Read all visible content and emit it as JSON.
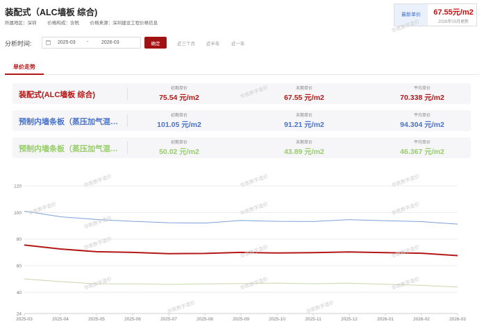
{
  "header": {
    "title": "装配式（ALC墙板 综合)",
    "region_label": "所属地区：",
    "region_value": "深圳",
    "composition_label": "价格构成：",
    "composition_value": "含税",
    "source_label": "价格来源：",
    "source_value": "深圳建设工程价格信息"
  },
  "latest_price": {
    "label": "最新单价",
    "value": "67.55元/m2",
    "updated": "2026年03月更新"
  },
  "filter": {
    "label": "分析时间:",
    "start": "2025-03",
    "separator": "-",
    "end": "2026-03",
    "confirm": "确定",
    "quick_options": [
      "近三个月",
      "近半年",
      "近一年"
    ]
  },
  "tabs": [
    "单价走势"
  ],
  "stats": {
    "col_labels": [
      "初期单价",
      "末期单价",
      "平均单价"
    ],
    "rows": [
      {
        "name": "装配式(ALC墙板 综合)",
        "color": "#b31616",
        "initial": "75.54 元/m2",
        "final": "67.55 元/m2",
        "average": "70.338 元/m2"
      },
      {
        "name": "预制内墙条板（蒸压加气混…",
        "color": "#4a72c9",
        "initial": "101.05 元/m2",
        "final": "91.21 元/m2",
        "average": "94.304 元/m2"
      },
      {
        "name": "预制内墙条板（蒸压加气混…",
        "color": "#97cc6a",
        "initial": "50.02 元/m2",
        "final": "43.89 元/m2",
        "average": "46.367 元/m2"
      }
    ]
  },
  "watermark": "华筑数字造价",
  "chart_data": {
    "type": "line",
    "categories": [
      "2025-03",
      "2025-04",
      "2025-05",
      "2025-06",
      "2025-07",
      "2025-08",
      "2025-09",
      "2025-10",
      "2025-11",
      "2025-12",
      "2026-01",
      "2026-02",
      "2026-03"
    ],
    "yticks": [
      24,
      40,
      60,
      80,
      100,
      120
    ],
    "ylim": [
      24,
      120
    ],
    "grid": true,
    "series": [
      {
        "name": "装配式(ALC墙板 综合)",
        "color": "#b31616",
        "width": 2,
        "values": [
          75.54,
          72.5,
          70.5,
          70.0,
          69.0,
          69.2,
          70.0,
          69.5,
          69.8,
          70.3,
          69.8,
          69.3,
          67.55
        ]
      },
      {
        "name": "预制内墙条板（蒸压加气混…",
        "color": "#7e9fd8",
        "width": 1,
        "values": [
          101.05,
          96.8,
          94.7,
          93.3,
          92.3,
          92.0,
          94.0,
          93.3,
          93.2,
          94.6,
          93.8,
          93.1,
          91.21
        ]
      },
      {
        "name": "预制内墙条板（蒸压加气混…",
        "color": "#c8d6a8",
        "width": 1,
        "values": [
          50.02,
          48.0,
          46.3,
          46.3,
          45.9,
          46.3,
          46.5,
          46.9,
          46.4,
          46.8,
          46.0,
          45.2,
          43.89
        ]
      }
    ]
  }
}
